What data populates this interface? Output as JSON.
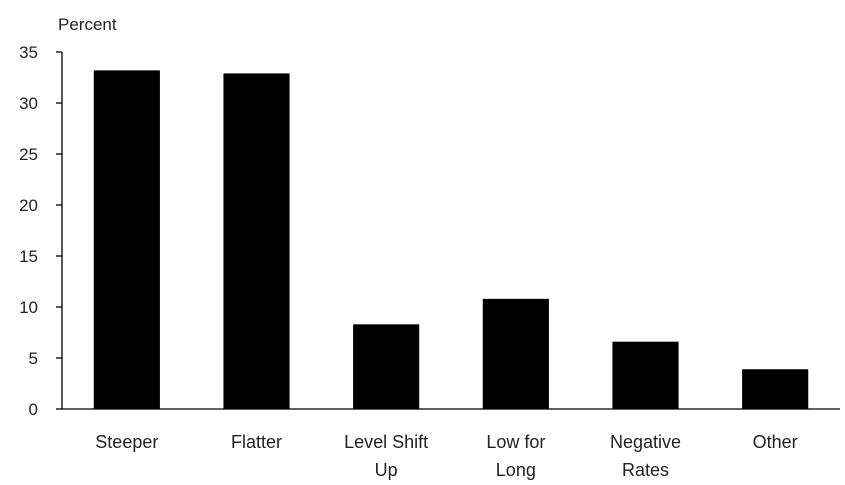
{
  "chart_data": {
    "type": "bar",
    "title": "",
    "ylabel": "Percent",
    "xlabel": "",
    "ylim": [
      0,
      35
    ],
    "yticks": [
      0,
      5,
      10,
      15,
      20,
      25,
      30,
      35
    ],
    "grid": false,
    "categories": [
      [
        "Steeper"
      ],
      [
        "Flatter"
      ],
      [
        "Level Shift",
        "Up"
      ],
      [
        "Low for",
        "Long"
      ],
      [
        "Negative",
        "Rates"
      ],
      [
        "Other"
      ]
    ],
    "values": [
      33.2,
      32.9,
      8.3,
      10.8,
      6.6,
      3.9
    ],
    "bar_color": "#000000"
  }
}
